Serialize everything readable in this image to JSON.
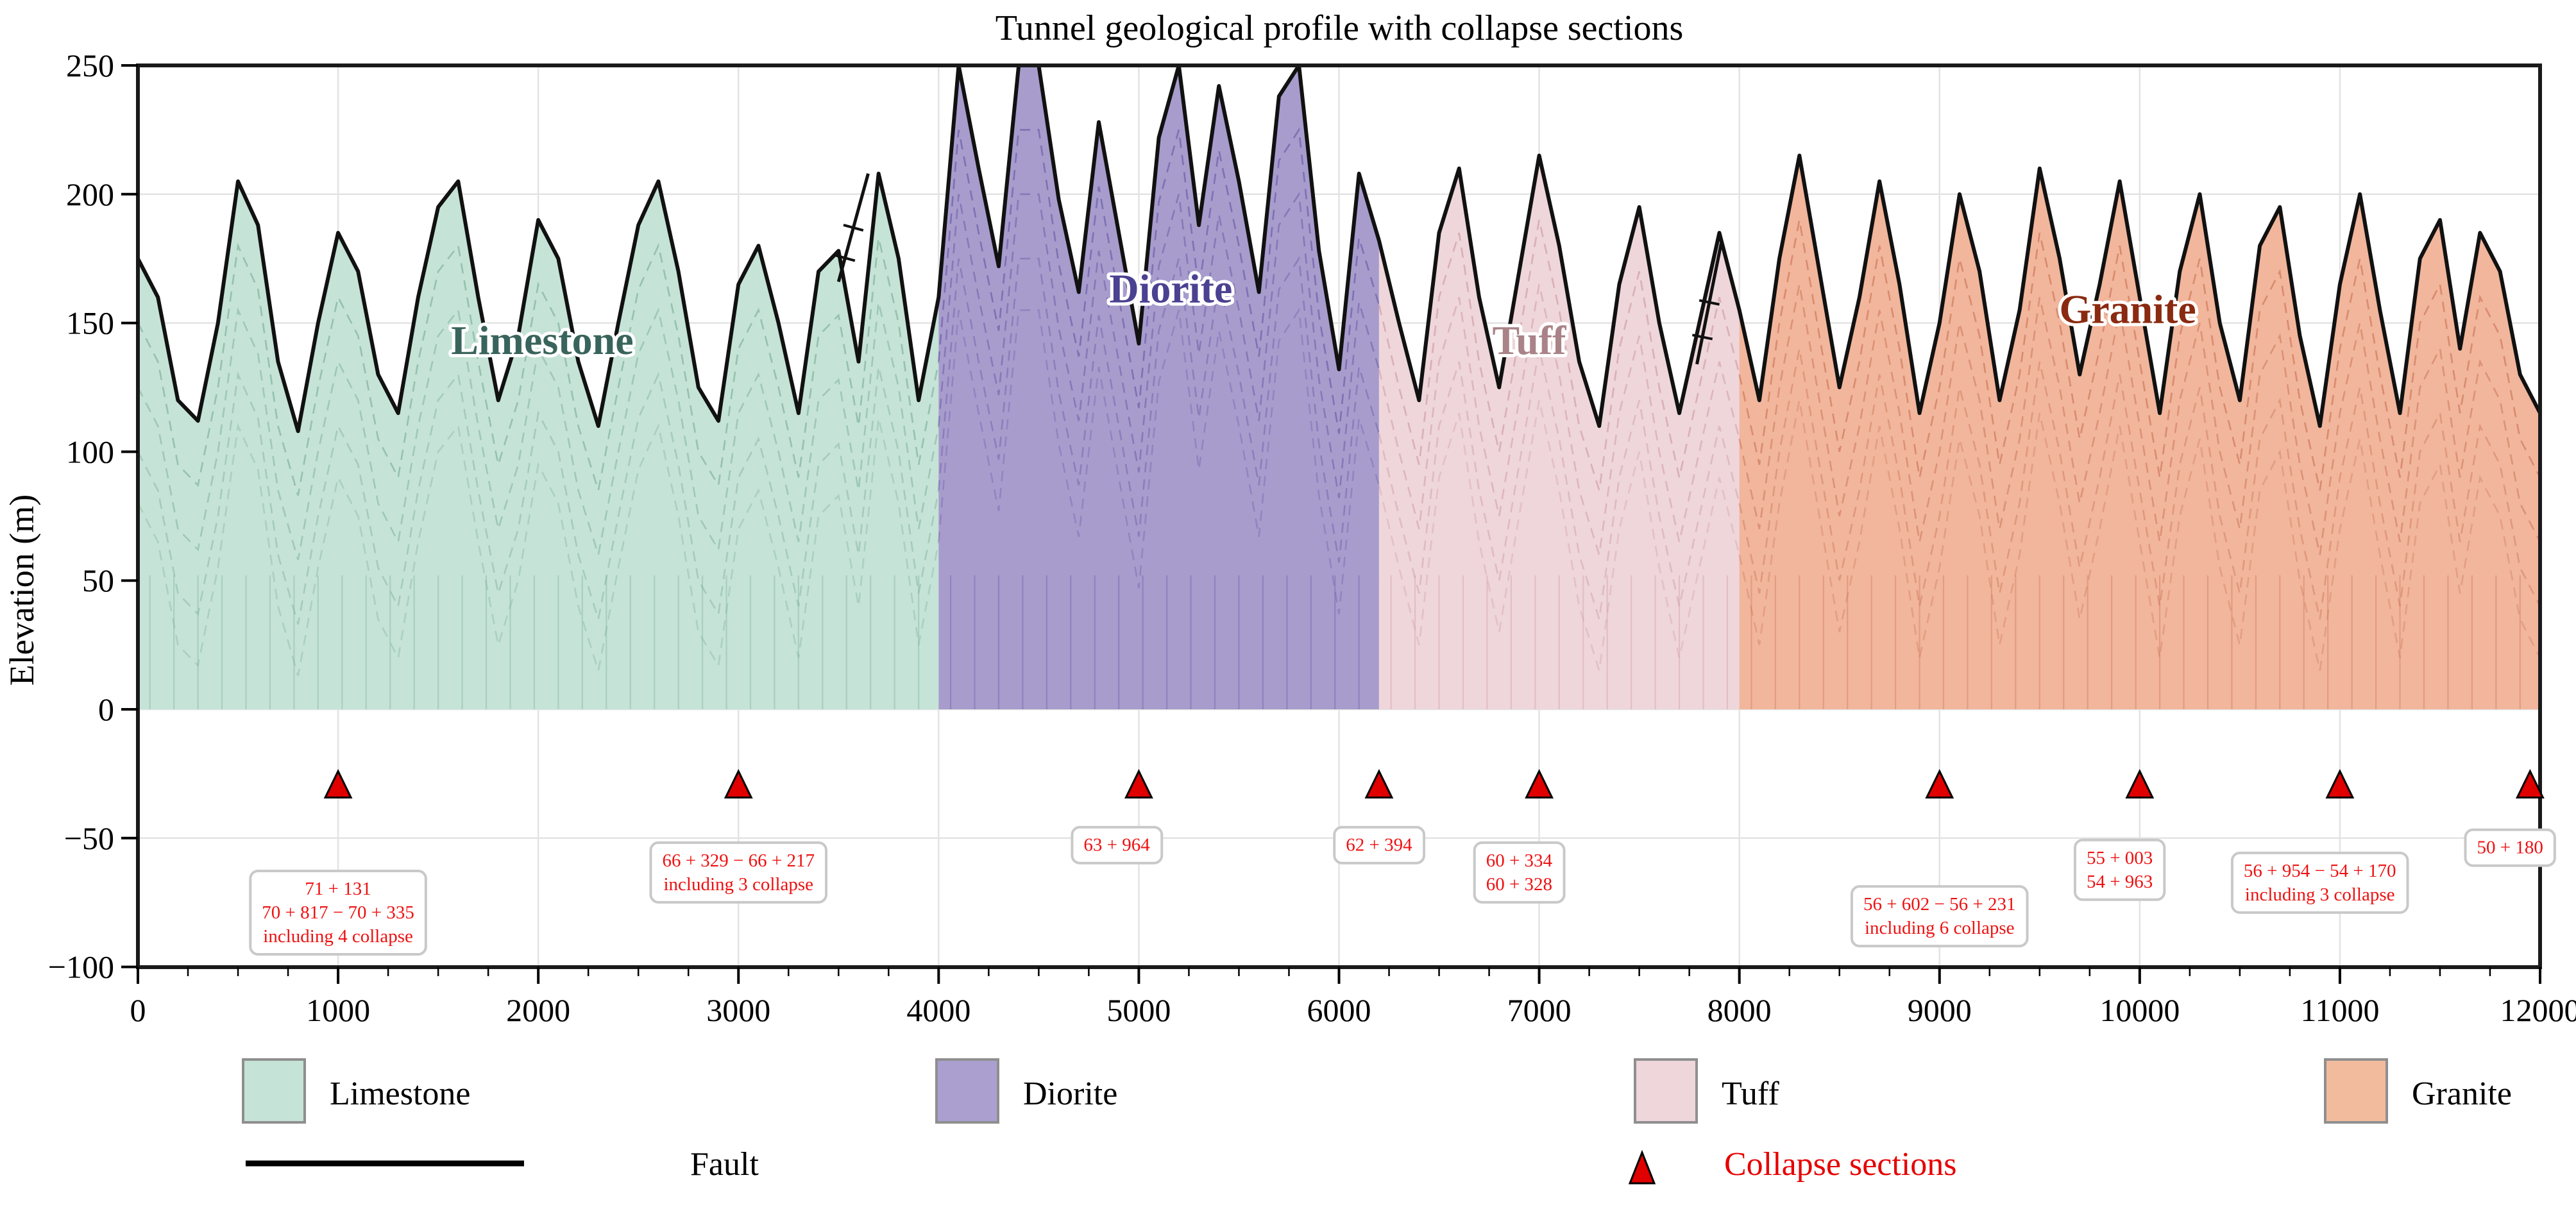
{
  "chart_data": {
    "type": "area",
    "title": "Tunnel geological profile with collapse sections",
    "xlabel": "",
    "ylabel": "Elevation (m)",
    "xlim": [
      0,
      12000
    ],
    "ylim": [
      -100,
      250
    ],
    "x_ticks": [
      0,
      1000,
      2000,
      3000,
      4000,
      5000,
      6000,
      7000,
      8000,
      9000,
      10000,
      11000,
      12000
    ],
    "x_minor_tick_step": 250,
    "y_ticks": [
      -100,
      -50,
      0,
      50,
      100,
      150,
      200,
      250
    ],
    "y_tick_labels": [
      "−100",
      "−50",
      "0",
      "50",
      "100",
      "150",
      "200",
      "250"
    ],
    "grid": true,
    "zones": [
      {
        "name": "Limestone",
        "x_start": 0,
        "x_end": 4000,
        "fill": "#c5e3d6",
        "dark": "#6ea693",
        "label_color": "#39645c",
        "label_x": 2020,
        "label_elev": 138
      },
      {
        "name": "Diorite",
        "x_start": 4000,
        "x_end": 6200,
        "fill": "#a89ccd",
        "dark": "#5b4f9e",
        "label_color": "#4a4191",
        "label_x": 5160,
        "label_elev": 158
      },
      {
        "name": "Tuff",
        "x_start": 6200,
        "x_end": 8000,
        "fill": "#eed6da",
        "dark": "#c98f97",
        "label_color": "#a98387",
        "label_x": 6950,
        "label_elev": 138
      },
      {
        "name": "Granite",
        "x_start": 8000,
        "x_end": 12000,
        "fill": "#f1b69c",
        "dark": "#c4674a",
        "label_color": "#8a2a10",
        "label_x": 9940,
        "label_elev": 150
      }
    ],
    "terrain": [
      [
        0,
        175
      ],
      [
        100,
        160
      ],
      [
        200,
        120
      ],
      [
        300,
        112
      ],
      [
        400,
        150
      ],
      [
        500,
        205
      ],
      [
        600,
        188
      ],
      [
        700,
        135
      ],
      [
        800,
        108
      ],
      [
        900,
        150
      ],
      [
        1000,
        185
      ],
      [
        1100,
        170
      ],
      [
        1200,
        130
      ],
      [
        1300,
        115
      ],
      [
        1400,
        160
      ],
      [
        1500,
        195
      ],
      [
        1600,
        205
      ],
      [
        1700,
        160
      ],
      [
        1800,
        120
      ],
      [
        1900,
        145
      ],
      [
        2000,
        190
      ],
      [
        2100,
        175
      ],
      [
        2200,
        135
      ],
      [
        2300,
        110
      ],
      [
        2400,
        150
      ],
      [
        2500,
        188
      ],
      [
        2600,
        205
      ],
      [
        2700,
        170
      ],
      [
        2800,
        125
      ],
      [
        2900,
        112
      ],
      [
        3000,
        165
      ],
      [
        3100,
        180
      ],
      [
        3200,
        150
      ],
      [
        3300,
        115
      ],
      [
        3400,
        170
      ],
      [
        3500,
        178
      ],
      [
        3600,
        135
      ],
      [
        3700,
        208
      ],
      [
        3800,
        175
      ],
      [
        3900,
        120
      ],
      [
        4000,
        160
      ],
      [
        4100,
        250
      ],
      [
        4200,
        210
      ],
      [
        4300,
        172
      ],
      [
        4400,
        250
      ],
      [
        4500,
        250
      ],
      [
        4600,
        198
      ],
      [
        4700,
        162
      ],
      [
        4800,
        228
      ],
      [
        4900,
        185
      ],
      [
        5000,
        142
      ],
      [
        5100,
        222
      ],
      [
        5200,
        250
      ],
      [
        5300,
        188
      ],
      [
        5400,
        242
      ],
      [
        5500,
        205
      ],
      [
        5600,
        162
      ],
      [
        5700,
        238
      ],
      [
        5800,
        250
      ],
      [
        5900,
        178
      ],
      [
        6000,
        132
      ],
      [
        6100,
        208
      ],
      [
        6200,
        182
      ],
      [
        6300,
        150
      ],
      [
        6400,
        120
      ],
      [
        6500,
        185
      ],
      [
        6600,
        210
      ],
      [
        6700,
        160
      ],
      [
        6800,
        125
      ],
      [
        6900,
        170
      ],
      [
        7000,
        215
      ],
      [
        7100,
        180
      ],
      [
        7200,
        135
      ],
      [
        7300,
        110
      ],
      [
        7400,
        165
      ],
      [
        7500,
        195
      ],
      [
        7600,
        150
      ],
      [
        7700,
        115
      ],
      [
        7800,
        150
      ],
      [
        7900,
        185
      ],
      [
        8000,
        155
      ],
      [
        8100,
        120
      ],
      [
        8200,
        175
      ],
      [
        8300,
        215
      ],
      [
        8400,
        170
      ],
      [
        8500,
        125
      ],
      [
        8600,
        160
      ],
      [
        8700,
        205
      ],
      [
        8800,
        165
      ],
      [
        8900,
        115
      ],
      [
        9000,
        150
      ],
      [
        9100,
        200
      ],
      [
        9200,
        170
      ],
      [
        9300,
        120
      ],
      [
        9400,
        155
      ],
      [
        9500,
        210
      ],
      [
        9600,
        175
      ],
      [
        9700,
        130
      ],
      [
        9800,
        165
      ],
      [
        9900,
        205
      ],
      [
        10000,
        160
      ],
      [
        10100,
        115
      ],
      [
        10200,
        170
      ],
      [
        10300,
        200
      ],
      [
        10400,
        150
      ],
      [
        10500,
        120
      ],
      [
        10600,
        180
      ],
      [
        10700,
        195
      ],
      [
        10800,
        145
      ],
      [
        10900,
        110
      ],
      [
        11000,
        165
      ],
      [
        11100,
        200
      ],
      [
        11200,
        155
      ],
      [
        11300,
        115
      ],
      [
        11400,
        175
      ],
      [
        11500,
        190
      ],
      [
        11600,
        140
      ],
      [
        11700,
        185
      ],
      [
        11800,
        170
      ],
      [
        11900,
        130
      ],
      [
        12000,
        115
      ]
    ],
    "collapse_markers": {
      "x_positions": [
        1000,
        3000,
        5000,
        6200,
        7000,
        9000,
        10000,
        11000,
        11950
      ],
      "elevation": -30,
      "fill": "#e00000",
      "edge": "#000000"
    },
    "annotations": [
      {
        "x": 1000,
        "top": -62,
        "lines": [
          "71 + 131",
          "70 + 817 − 70 + 335",
          "including 4 collapse"
        ]
      },
      {
        "x": 3000,
        "top": -51,
        "lines": [
          "66 + 329 − 66 + 217",
          "including 3 collapse"
        ]
      },
      {
        "x": 4890,
        "top": -45,
        "lines": [
          "63 + 964"
        ]
      },
      {
        "x": 6200,
        "top": -45,
        "lines": [
          "62 + 394"
        ]
      },
      {
        "x": 6900,
        "top": -51,
        "lines": [
          "60 + 334",
          "60 + 328"
        ]
      },
      {
        "x": 9000,
        "top": -68,
        "lines": [
          "56 + 602 − 56 + 231",
          "including 6 collapse"
        ]
      },
      {
        "x": 9900,
        "top": -50,
        "lines": [
          "55 + 003",
          "54 + 963"
        ]
      },
      {
        "x": 10900,
        "top": -55,
        "lines": [
          "56 + 954 − 54 + 170",
          "including 3 collapse"
        ]
      },
      {
        "x": 11850,
        "top": -46,
        "lines": [
          "50 + 180"
        ]
      }
    ],
    "annotation_text_color": "#ee1111",
    "faults": [
      {
        "x1": 3500,
        "e1": 166,
        "x2": 3648,
        "e2": 208
      },
      {
        "x1": 7788,
        "e1": 134,
        "x2": 7912,
        "e2": 182
      }
    ],
    "legend": {
      "position": "below",
      "items": [
        {
          "label": "Limestone",
          "color": "#c5e3d6"
        },
        {
          "label": "Diorite",
          "color": "#ab9fd0"
        },
        {
          "label": "Tuff",
          "color": "#eed6da"
        },
        {
          "label": "Granite",
          "color": "#f2bb9e"
        }
      ],
      "fault_label": "Fault",
      "fault_line_color": "#000000",
      "collapse_label": "Collapse sections",
      "collapse_color": "#e60000"
    }
  }
}
